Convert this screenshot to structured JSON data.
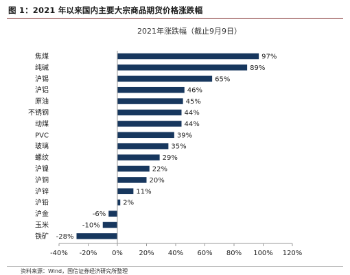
{
  "header": {
    "figure_title": "图 1：2021 年以来国内主要大宗商品期货价格涨跌幅"
  },
  "footer": {
    "source": "资料来源：Wind，国信证券经济研究所整理"
  },
  "colors": {
    "bar": "#17375e",
    "axis": "#9a9a9a"
  },
  "chart_data": {
    "type": "bar",
    "orientation": "horizontal",
    "title": "2021年涨跌幅（截止9月9日）",
    "categories": [
      "焦煤",
      "纯碱",
      "沪锡",
      "沪铝",
      "原油",
      "不锈钢",
      "动煤",
      "PVC",
      "玻璃",
      "螺纹",
      "沪镍",
      "沪铜",
      "沪锌",
      "沪铅",
      "沪金",
      "玉米",
      "铁矿"
    ],
    "values": [
      97,
      89,
      65,
      46,
      45,
      44,
      44,
      39,
      35,
      29,
      22,
      20,
      11,
      2,
      -6,
      -10,
      -28
    ],
    "value_labels": [
      "97%",
      "89%",
      "65%",
      "46%",
      "45%",
      "44%",
      "44%",
      "39%",
      "35%",
      "29%",
      "22%",
      "20%",
      "11%",
      "2%",
      "-6%",
      "-10%",
      "-28%"
    ],
    "xlim": [
      -40,
      120
    ],
    "xticks": [
      -40,
      -20,
      0,
      20,
      40,
      60,
      80,
      100,
      120
    ],
    "xtick_labels": [
      "-40%",
      "-20%",
      "0%",
      "20%",
      "40%",
      "60%",
      "80%",
      "100%",
      "120%"
    ],
    "grid": false,
    "legend": "none"
  }
}
